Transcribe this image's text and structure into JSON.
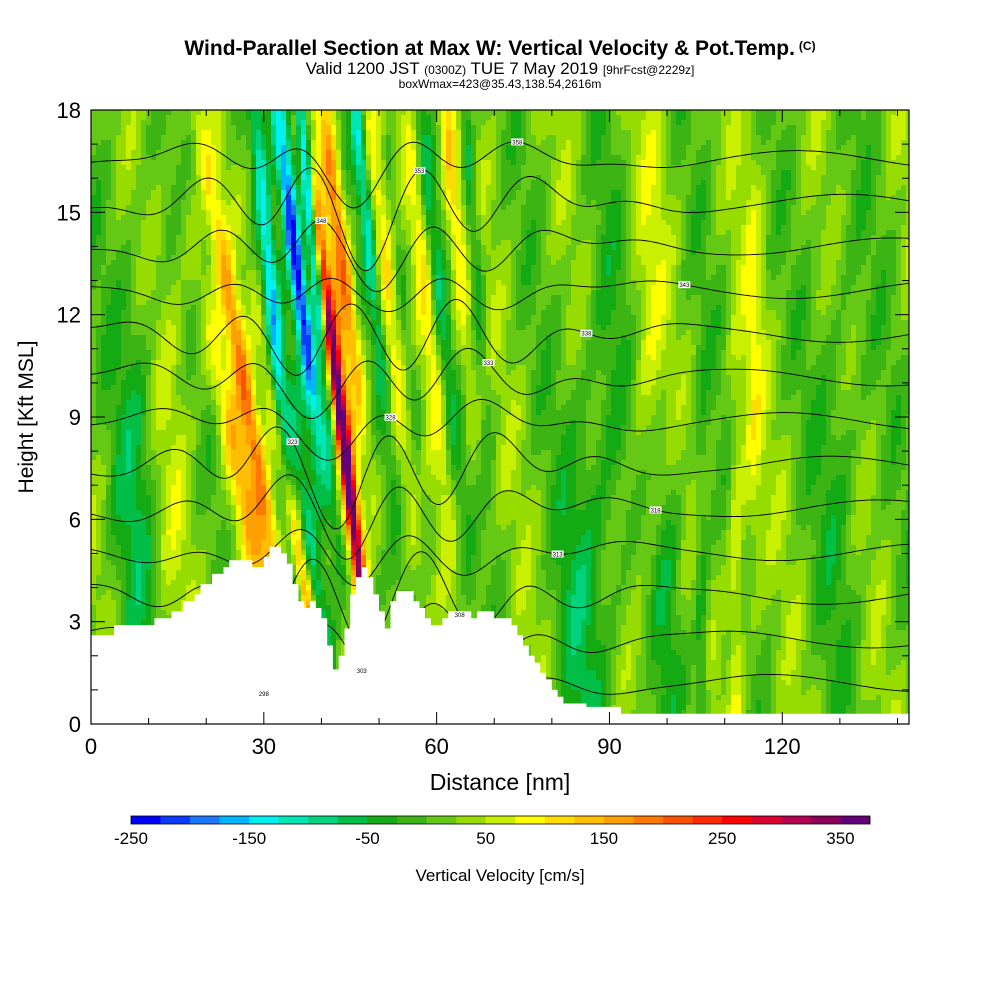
{
  "header": {
    "title": "Wind-Parallel Section at Max W: Vertical Velocity & Pot.Temp.",
    "copyright": "(C)",
    "valid_prefix": "Valid 1200 JST",
    "valid_utc": "(0300Z)",
    "valid_date": "TUE 7 May 2019",
    "forecast": "[9hrFcst@2229z]",
    "boxinfo": "boxWmax=423@35.43,138.54,2616m"
  },
  "chart_data": {
    "type": "heatmap",
    "xlabel": "Distance [nm]",
    "ylabel": "Height [Kft MSL]",
    "xlim": [
      0,
      142
    ],
    "ylim": [
      0,
      18
    ],
    "x_ticks": [
      0,
      30,
      60,
      90,
      120
    ],
    "y_ticks": [
      0,
      3,
      6,
      9,
      12,
      15,
      18
    ],
    "x_tick_labels": [
      "0",
      "30",
      "60",
      "90",
      "120"
    ],
    "y_tick_labels": [
      "0",
      "3",
      "6",
      "9",
      "12",
      "15",
      "18"
    ],
    "colorbar": {
      "label": "Vertical Velocity [cm/s]",
      "min": -250,
      "max": 375,
      "step": 25,
      "tick_values": [
        -250,
        -150,
        -50,
        50,
        150,
        250,
        350
      ],
      "tick_labels": [
        "-250",
        "-150",
        "-50",
        "50",
        "150",
        "250",
        "350"
      ],
      "colors": [
        "#0000ff",
        "#0a3cff",
        "#1e78ff",
        "#00b4ff",
        "#00f0f0",
        "#00e6b4",
        "#00d27d",
        "#00be46",
        "#14aa14",
        "#3cb414",
        "#64c814",
        "#96dc00",
        "#c8f000",
        "#ffff00",
        "#ffdc00",
        "#ffbe00",
        "#ffa000",
        "#ff7800",
        "#ff5000",
        "#ff2800",
        "#ff0000",
        "#dc0032",
        "#b40050",
        "#8c005a",
        "#640078"
      ]
    },
    "terrain_kft": [
      [
        0,
        2.6
      ],
      [
        4,
        2.6
      ],
      [
        4,
        2.9
      ],
      [
        11,
        2.9
      ],
      [
        11,
        3.1
      ],
      [
        14,
        3.1
      ],
      [
        14,
        3.3
      ],
      [
        16,
        3.3
      ],
      [
        16,
        3.6
      ],
      [
        18,
        3.6
      ],
      [
        18,
        3.8
      ],
      [
        19,
        3.8
      ],
      [
        19,
        4.1
      ],
      [
        21,
        4.1
      ],
      [
        21,
        4.4
      ],
      [
        23,
        4.4
      ],
      [
        23,
        4.6
      ],
      [
        24,
        4.6
      ],
      [
        24,
        4.8
      ],
      [
        28,
        4.8
      ],
      [
        28,
        4.6
      ],
      [
        30,
        4.6
      ],
      [
        30,
        4.9
      ],
      [
        31,
        4.9
      ],
      [
        31,
        5.2
      ],
      [
        33,
        5.2
      ],
      [
        33,
        5.0
      ],
      [
        34,
        5.0
      ],
      [
        34,
        4.7
      ],
      [
        35,
        4.7
      ],
      [
        35,
        4.1
      ],
      [
        36,
        4.1
      ],
      [
        36,
        3.6
      ],
      [
        37,
        3.6
      ],
      [
        37,
        3.4
      ],
      [
        38,
        3.4
      ],
      [
        38,
        3.6
      ],
      [
        39,
        3.6
      ],
      [
        39,
        3.4
      ],
      [
        40,
        3.4
      ],
      [
        40,
        3.1
      ],
      [
        41,
        3.1
      ],
      [
        41,
        2.3
      ],
      [
        42,
        2.3
      ],
      [
        42,
        1.6
      ],
      [
        43,
        1.6
      ],
      [
        43,
        2.0
      ],
      [
        44,
        2.0
      ],
      [
        44,
        2.8
      ],
      [
        45,
        2.8
      ],
      [
        45,
        3.8
      ],
      [
        46,
        3.8
      ],
      [
        46,
        4.3
      ],
      [
        47,
        4.3
      ],
      [
        47,
        4.6
      ],
      [
        48,
        4.6
      ],
      [
        48,
        4.3
      ],
      [
        49,
        4.3
      ],
      [
        49,
        3.8
      ],
      [
        50,
        3.8
      ],
      [
        50,
        3.3
      ],
      [
        51,
        3.3
      ],
      [
        51,
        2.8
      ],
      [
        52,
        2.8
      ],
      [
        52,
        3.6
      ],
      [
        53,
        3.6
      ],
      [
        53,
        3.9
      ],
      [
        56,
        3.9
      ],
      [
        56,
        3.6
      ],
      [
        57,
        3.6
      ],
      [
        57,
        3.4
      ],
      [
        58,
        3.4
      ],
      [
        58,
        3.1
      ],
      [
        59,
        3.1
      ],
      [
        59,
        2.9
      ],
      [
        61,
        2.9
      ],
      [
        61,
        3.1
      ],
      [
        62,
        3.1
      ],
      [
        62,
        3.3
      ],
      [
        66,
        3.3
      ],
      [
        66,
        3.1
      ],
      [
        67,
        3.1
      ],
      [
        67,
        3.3
      ],
      [
        70,
        3.3
      ],
      [
        70,
        3.1
      ],
      [
        73,
        3.1
      ],
      [
        73,
        2.9
      ],
      [
        74,
        2.9
      ],
      [
        74,
        2.6
      ],
      [
        75,
        2.6
      ],
      [
        75,
        2.3
      ],
      [
        76,
        2.3
      ],
      [
        76,
        2.0
      ],
      [
        77,
        2.0
      ],
      [
        77,
        1.8
      ],
      [
        78,
        1.8
      ],
      [
        78,
        1.5
      ],
      [
        79,
        1.5
      ],
      [
        79,
        1.3
      ],
      [
        80,
        1.3
      ],
      [
        80,
        1.0
      ],
      [
        81,
        1.0
      ],
      [
        81,
        0.8
      ],
      [
        82,
        0.8
      ],
      [
        82,
        0.6
      ],
      [
        86,
        0.6
      ],
      [
        86,
        0.5
      ],
      [
        92,
        0.5
      ],
      [
        92,
        0.3
      ],
      [
        142,
        0.3
      ],
      [
        142,
        0
      ],
      [
        0,
        0
      ]
    ],
    "contour_labels": [
      "298",
      "303",
      "308",
      "313",
      "318",
      "323",
      "328",
      "333",
      "338",
      "343",
      "348",
      "353",
      "358"
    ]
  }
}
